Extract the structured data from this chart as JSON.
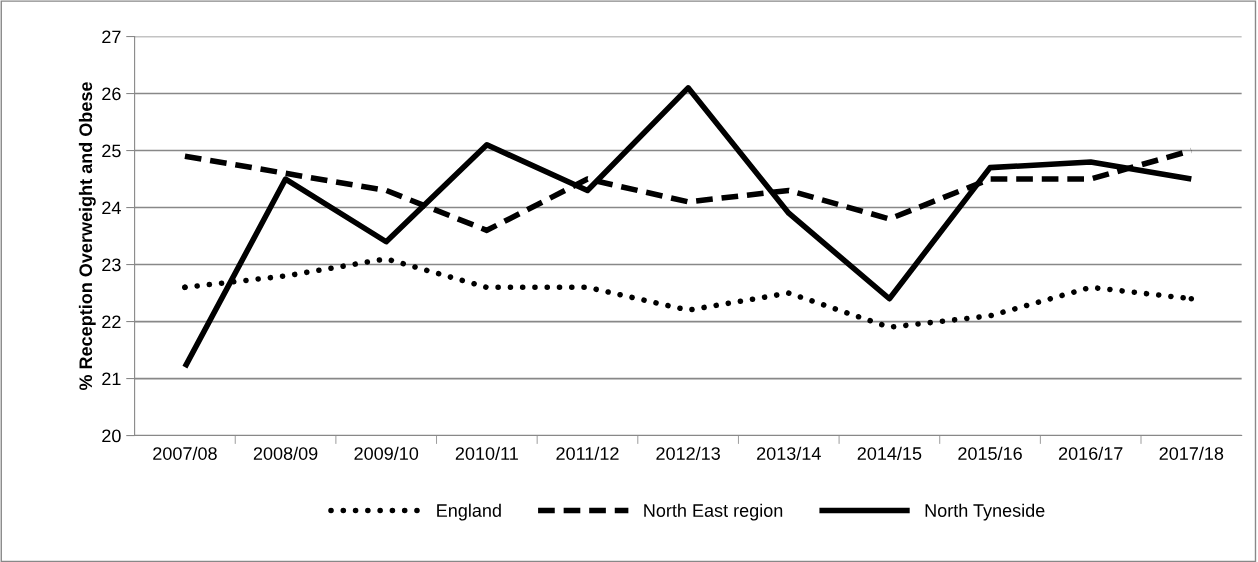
{
  "chart_data": {
    "type": "line",
    "ylabel": "% Reception Overweight and Obese",
    "categories": [
      "2007/08",
      "2008/09",
      "2009/10",
      "2010/11",
      "2011/12",
      "2012/13",
      "2013/14",
      "2014/15",
      "2015/16",
      "2016/17",
      "2017/18"
    ],
    "series": [
      {
        "name": "England",
        "color": "#000000",
        "line_style": "dotted",
        "values": [
          22.6,
          22.8,
          23.1,
          22.6,
          22.6,
          22.2,
          22.5,
          21.9,
          22.1,
          22.6,
          22.4
        ]
      },
      {
        "name": "North East region",
        "color": "#000000",
        "line_style": "dashed",
        "values": [
          24.9,
          24.6,
          24.3,
          23.6,
          24.5,
          24.1,
          24.3,
          23.8,
          24.5,
          24.5,
          25.0
        ]
      },
      {
        "name": "North Tyneside",
        "color": "#000000",
        "line_style": "solid",
        "values": [
          21.2,
          24.5,
          23.4,
          25.1,
          24.3,
          26.1,
          23.9,
          22.4,
          24.7,
          24.8,
          24.5
        ]
      }
    ],
    "ylim": [
      20,
      27
    ],
    "yticks": [
      20,
      21,
      22,
      23,
      24,
      25,
      26,
      27
    ],
    "grid": "y",
    "legend": "bottom",
    "marker": "none"
  }
}
